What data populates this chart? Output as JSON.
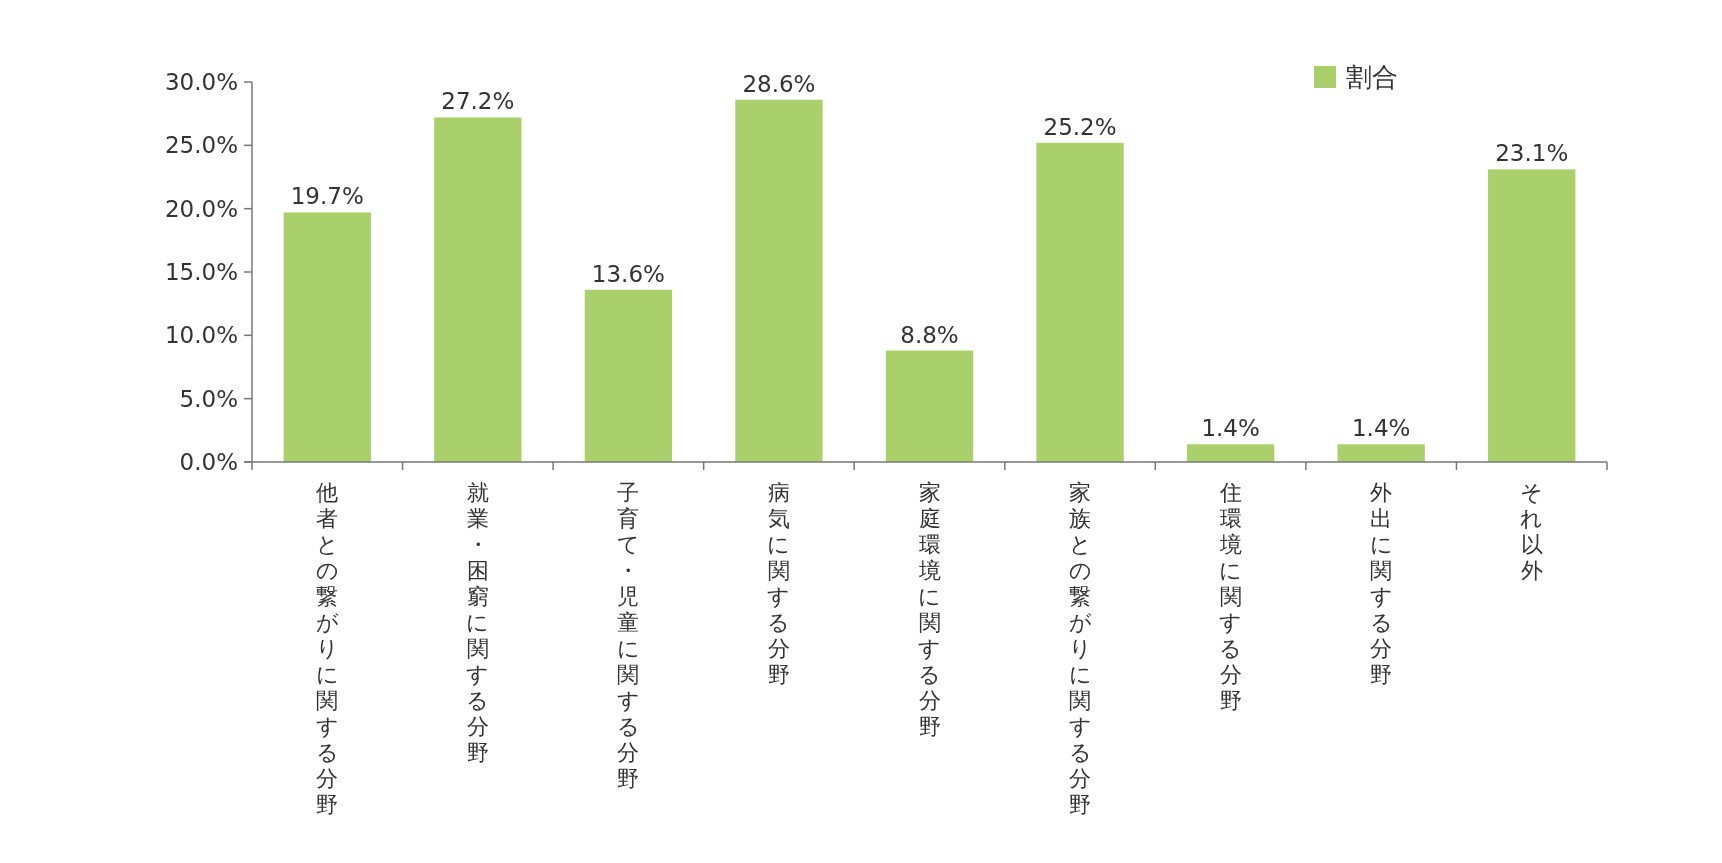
{
  "chart_data": {
    "type": "bar",
    "categories": [
      "他者との繋がりに関する分野",
      "就業・困窮に関する分野",
      "子育て・児童に関する分野",
      "病気に関する分野",
      "家庭環境に関する分野",
      "家族との繋がりに関する分野",
      "住環境に関する分野",
      "外出に関する分野",
      "それ以外"
    ],
    "series": [
      {
        "name": "割合",
        "color": "#a9d06a",
        "values": [
          19.7,
          27.2,
          13.6,
          28.6,
          8.8,
          25.2,
          1.4,
          1.4,
          23.1
        ],
        "value_labels": [
          "19.7%",
          "27.2%",
          "13.6%",
          "28.6%",
          "8.8%",
          "25.2%",
          "1.4%",
          "1.4%",
          "23.1%"
        ]
      }
    ],
    "ylim": [
      0,
      30
    ],
    "yticks": [
      {
        "value": 0,
        "label": "0.0%"
      },
      {
        "value": 5,
        "label": "5.0%"
      },
      {
        "value": 10,
        "label": "10.0%"
      },
      {
        "value": 15,
        "label": "15.0%"
      },
      {
        "value": 20,
        "label": "20.0%"
      },
      {
        "value": 25,
        "label": "25.0%"
      },
      {
        "value": 30,
        "label": "30.0%"
      }
    ],
    "legend": "top right",
    "grid": false
  }
}
